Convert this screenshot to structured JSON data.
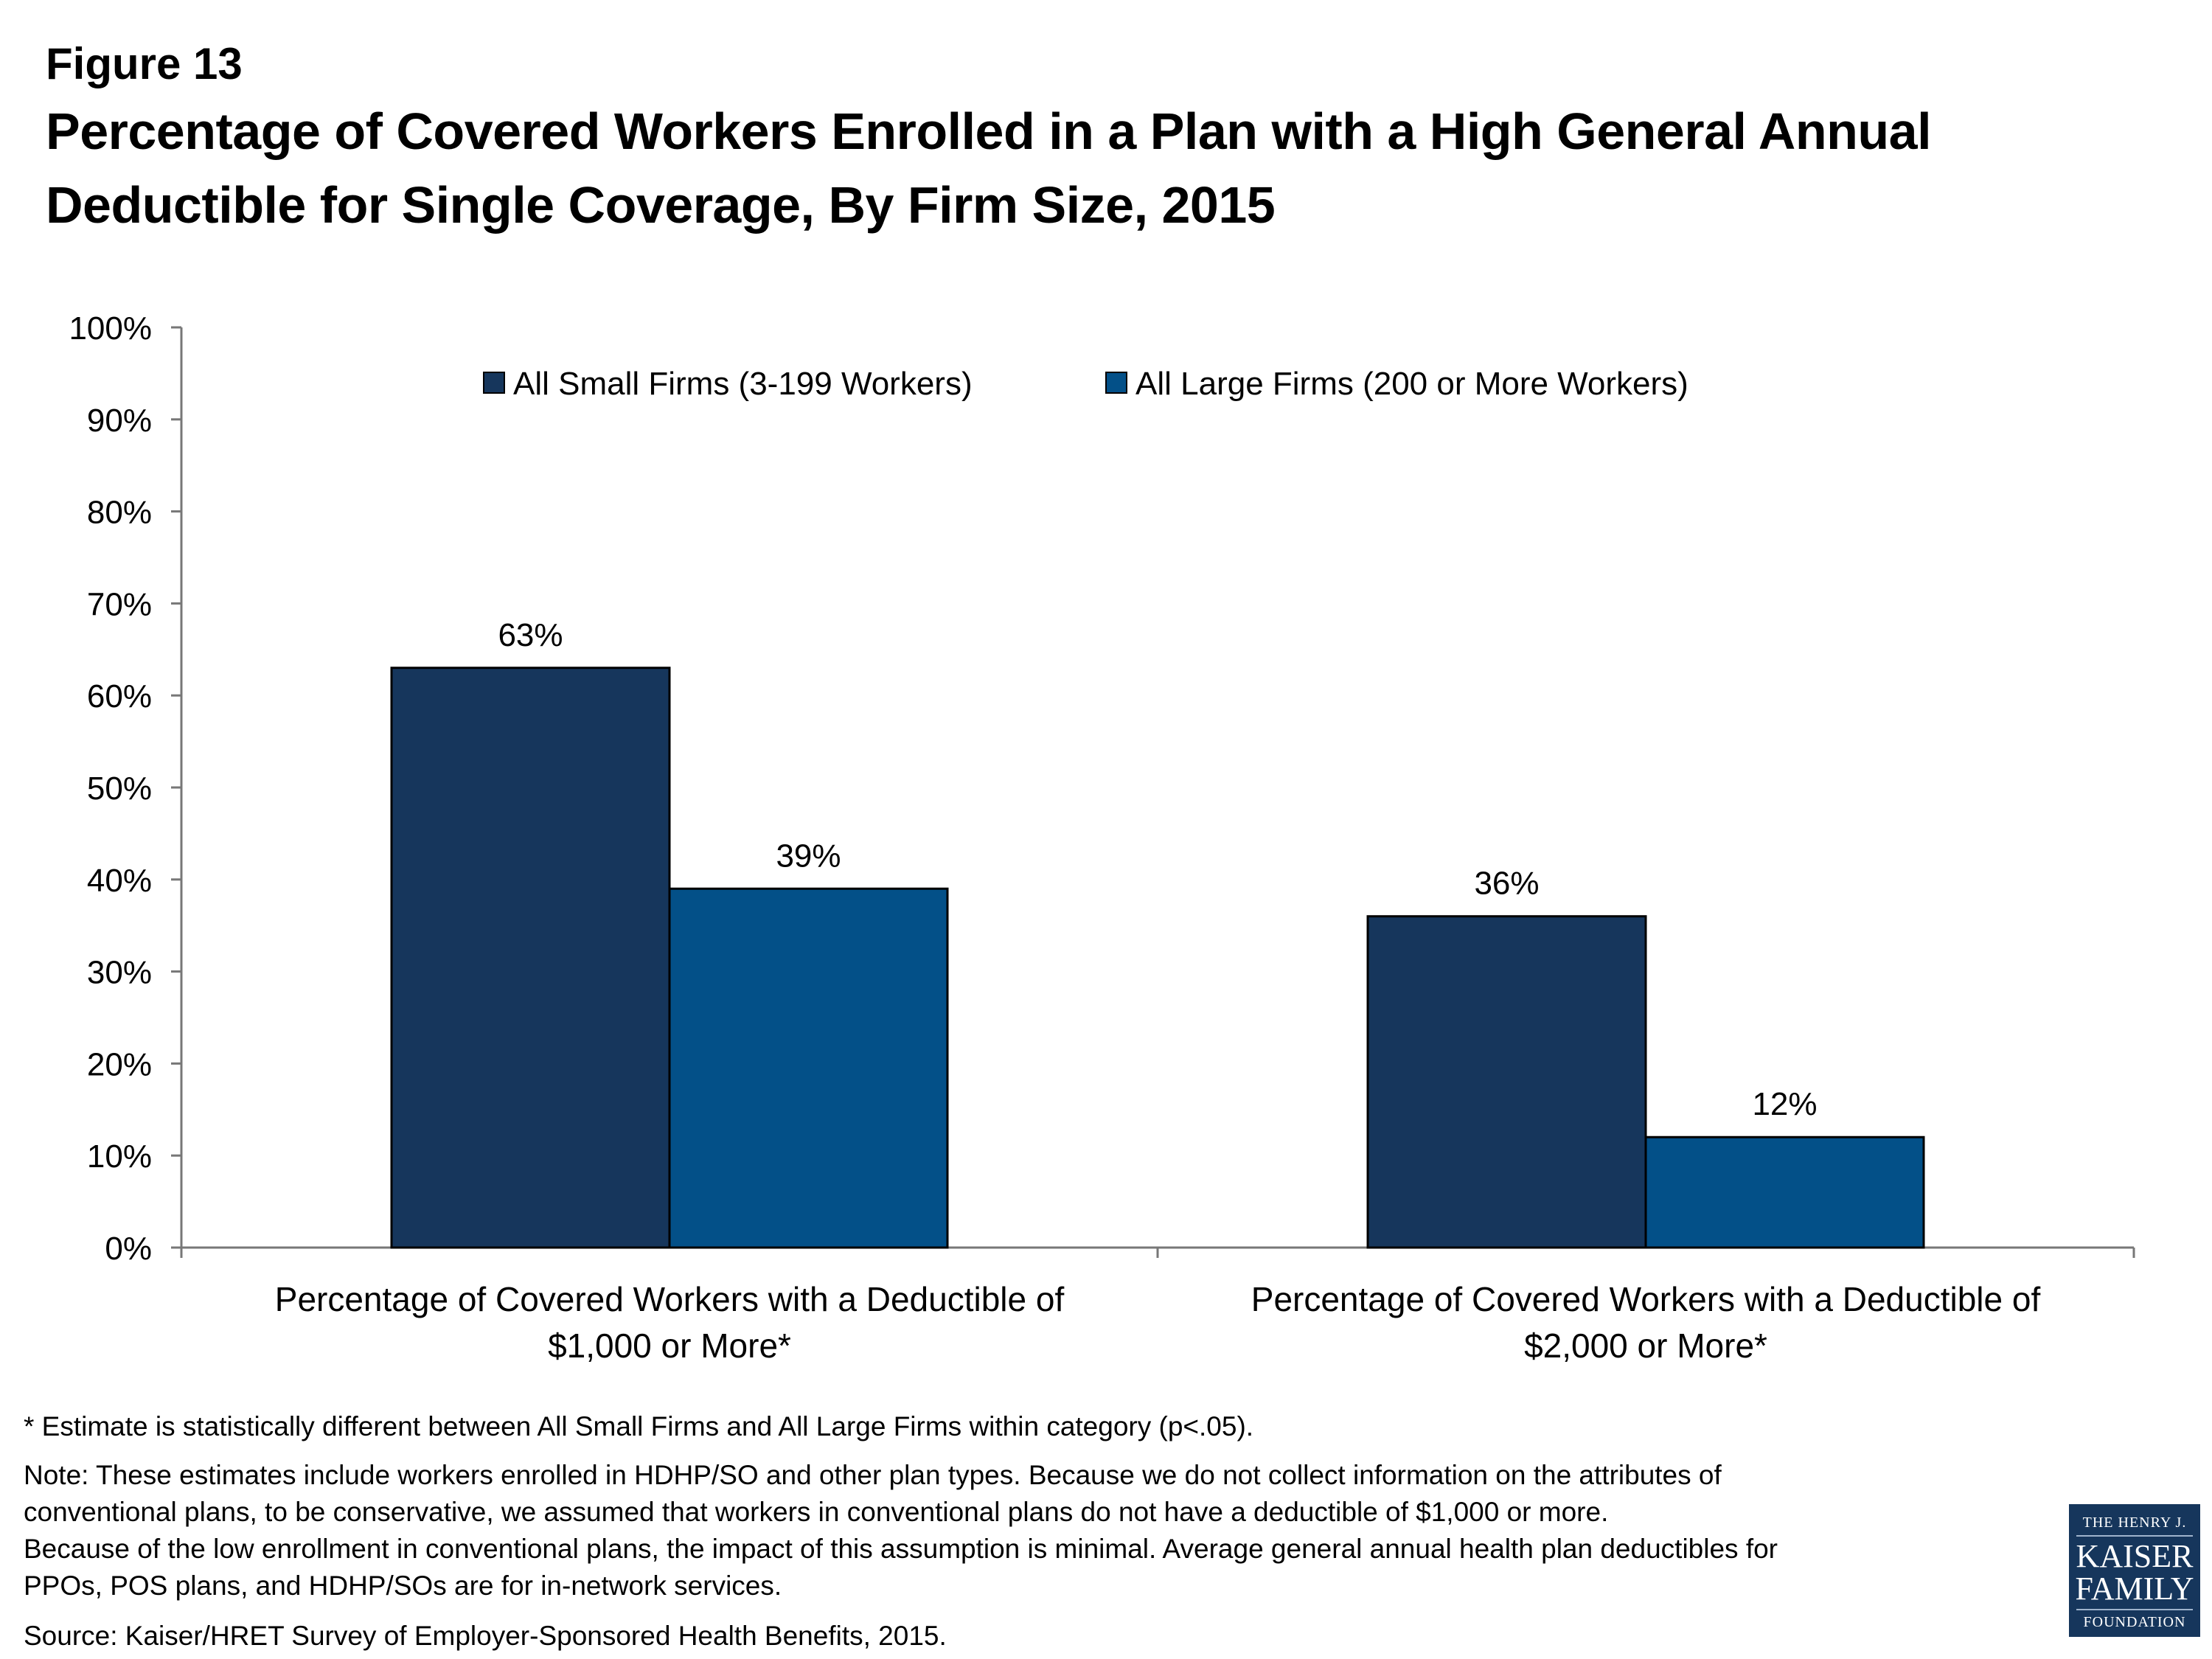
{
  "figure_label": "Figure 13",
  "title_lines": [
    "Percentage of Covered Workers Enrolled in a Plan with a High General Annual",
    "Deductible for Single Coverage, By Firm Size, 2015"
  ],
  "chart_data": {
    "type": "bar",
    "title": "Percentage of Covered Workers Enrolled in a Plan with a High General Annual Deductible for Single Coverage, By Firm Size, 2015",
    "categories": [
      [
        "Percentage of Covered Workers with a Deductible of",
        "$1,000 or More*"
      ],
      [
        "Percentage of Covered Workers with a Deductible of",
        "$2,000 or More*"
      ]
    ],
    "series": [
      {
        "name": "All Small Firms (3-199 Workers)",
        "values": [
          63,
          36
        ],
        "color": "#16365c"
      },
      {
        "name": "All Large Firms (200 or More Workers)",
        "values": [
          39,
          12
        ],
        "color": "#035088"
      }
    ],
    "data_labels": [
      [
        "63%",
        "36%"
      ],
      [
        "39%",
        "12%"
      ]
    ],
    "yticks": [
      "0%",
      "10%",
      "20%",
      "30%",
      "40%",
      "50%",
      "60%",
      "70%",
      "80%",
      "90%",
      "100%"
    ],
    "ylim": [
      0,
      100
    ],
    "xlabel": "",
    "ylabel": "",
    "grid": false,
    "legend_position": "top"
  },
  "footnotes": {
    "asterisk": "* Estimate is statistically different between All Small Firms and All Large Firms within category (p<.05).",
    "note_lines": [
      "Note: These estimates include workers enrolled in HDHP/SO and other plan types.  Because we do not collect information on the attributes of",
      "conventional plans, to be conservative, we assumed that workers in conventional plans do not have a deductible of $1,000 or more.",
      "Because of the low enrollment in conventional plans, the impact of this assumption is minimal.  Average general annual health plan deductibles for",
      "PPOs, POS plans, and HDHP/SOs are for in-network services."
    ],
    "source": "Source: Kaiser/HRET Survey of Employer-Sponsored Health Benefits, 2015."
  },
  "logo": {
    "line1": "THE HENRY J.",
    "line2": "KAISER",
    "line3": "FAMILY",
    "line4": "FOUNDATION"
  }
}
